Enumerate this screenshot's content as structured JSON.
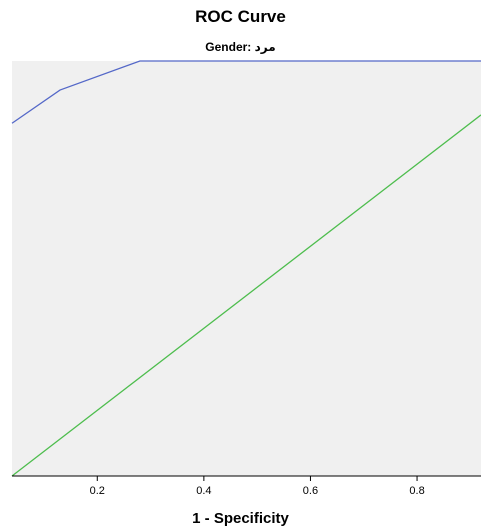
{
  "chart_data": {
    "type": "line",
    "title": "ROC Curve",
    "subtitle": "Gender: مرد",
    "xlabel": "1 - Specificity",
    "ylabel": "",
    "xlim": [
      0.04,
      0.92
    ],
    "ylim": [
      0.0,
      1.0
    ],
    "xticks": [
      0.2,
      0.4,
      0.6,
      0.8
    ],
    "xtick_labels": [
      "0.2",
      "0.4",
      "0.6",
      "0.8"
    ],
    "grid": false,
    "series": [
      {
        "color": "#5468c8",
        "x": [
          0.04,
          0.13,
          0.28,
          0.92
        ],
        "y": [
          0.85,
          0.93,
          1.0,
          1.0
        ]
      },
      {
        "color": "#4dbd4d",
        "x": [
          0.04,
          0.92
        ],
        "y": [
          0.0,
          0.87
        ]
      }
    ],
    "colors": {
      "plot_background": "#f0f0f0",
      "axis": "#000000"
    }
  }
}
